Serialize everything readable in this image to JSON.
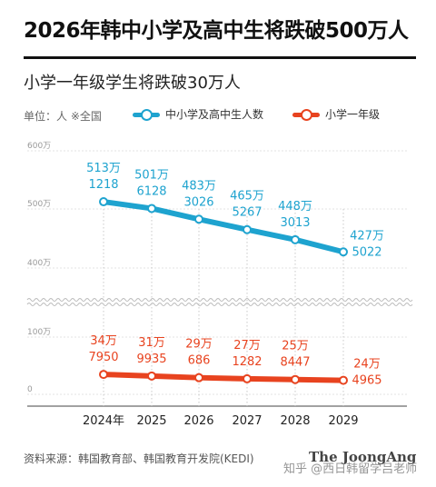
{
  "title": "2026年韩中小学及高中生将跌破500万人",
  "subtitle": "小学一年级学生将跌破30万人",
  "unit_note": "单位：人 ※全国",
  "colors": {
    "total": "#1ea3cf",
    "first_grade": "#e8431f",
    "brand": "#444444"
  },
  "footer": {
    "source": "资料来源：韩国教育部、韩国教育开发院(KEDI)",
    "brand": "The JoongAng",
    "watermark": "知乎 @西日韩留学吕老师"
  },
  "chart_data": {
    "type": "line",
    "x": [
      "2024年",
      "2025",
      "2026",
      "2027",
      "2028",
      "2029"
    ],
    "y_ticks": [
      "600万",
      "500万",
      "400万",
      "100万",
      "0"
    ],
    "axis_break": true,
    "series": [
      {
        "name": "中小学及高中生人数",
        "color": "#1ea3cf",
        "values": [
          5131218,
          5016128,
          4833026,
          4655267,
          4483013,
          4275022
        ],
        "labels": [
          [
            "513万",
            "1218"
          ],
          [
            "501万",
            "6128"
          ],
          [
            "483万",
            "3026"
          ],
          [
            "465万",
            "5267"
          ],
          [
            "448万",
            "3013"
          ],
          [
            "427万",
            "5022"
          ]
        ]
      },
      {
        "name": "小学一年级",
        "color": "#e8431f",
        "values": [
          347950,
          319935,
          290686,
          271282,
          258447,
          244965
        ],
        "labels": [
          [
            "34万",
            "7950"
          ],
          [
            "31万",
            "9935"
          ],
          [
            "29万",
            "686"
          ],
          [
            "27万",
            "1282"
          ],
          [
            "25万",
            "8447"
          ],
          [
            "24万",
            "4965"
          ]
        ]
      }
    ]
  }
}
